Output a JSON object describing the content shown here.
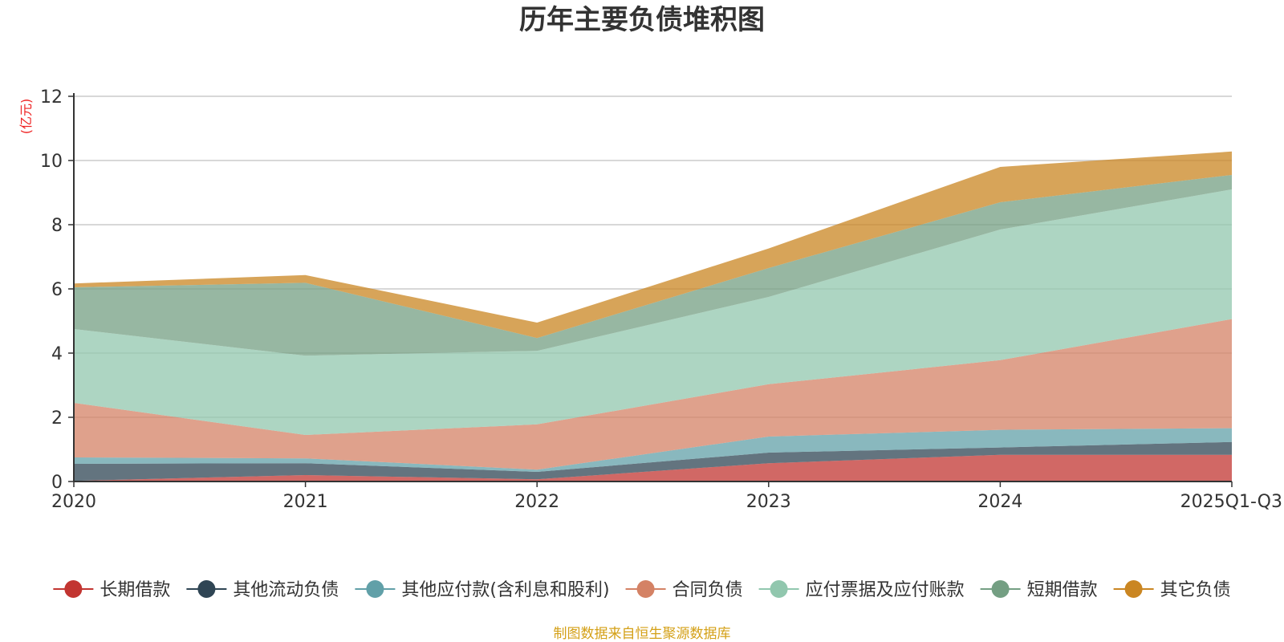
{
  "chart_data": {
    "type": "area",
    "stacked": true,
    "title": "历年主要负债堆积图",
    "unit": "(亿元)",
    "source": "制图数据来自恒生聚源数据库",
    "xlabel": "",
    "ylabel": "",
    "categories": [
      "2020",
      "2021",
      "2022",
      "2023",
      "2024",
      "2025Q1-Q3"
    ],
    "ylim": [
      0,
      12
    ],
    "yticks": [
      0,
      2,
      4,
      6,
      8,
      10,
      12
    ],
    "grid": true,
    "legend_position": "bottom",
    "series": [
      {
        "name": "长期借款",
        "color": "#c23531",
        "values": [
          0.02,
          0.2,
          0.07,
          0.57,
          0.83,
          0.83
        ]
      },
      {
        "name": "其他流动负债",
        "color": "#2f4554",
        "values": [
          0.53,
          0.37,
          0.23,
          0.33,
          0.23,
          0.4
        ]
      },
      {
        "name": "其他应付款(含利息和股利)",
        "color": "#61a0a8",
        "values": [
          0.2,
          0.15,
          0.07,
          0.5,
          0.55,
          0.43
        ]
      },
      {
        "name": "合同负债",
        "color": "#d48265",
        "values": [
          1.7,
          0.73,
          1.41,
          1.63,
          2.17,
          3.4
        ]
      },
      {
        "name": "应付票据及应付账款",
        "color": "#91c7ae",
        "values": [
          2.3,
          2.47,
          2.29,
          2.72,
          4.07,
          4.04
        ]
      },
      {
        "name": "短期借款",
        "color": "#749f83",
        "values": [
          1.3,
          2.27,
          0.4,
          0.9,
          0.85,
          0.45
        ]
      },
      {
        "name": "其它负债",
        "color": "#ca8622",
        "values": [
          0.12,
          0.24,
          0.48,
          0.61,
          1.1,
          0.73
        ]
      }
    ]
  },
  "colors": {
    "title": "#333333",
    "unit": "#ee2222",
    "source": "#d4a017",
    "grid": "#cccccc",
    "axis": "#333333"
  }
}
